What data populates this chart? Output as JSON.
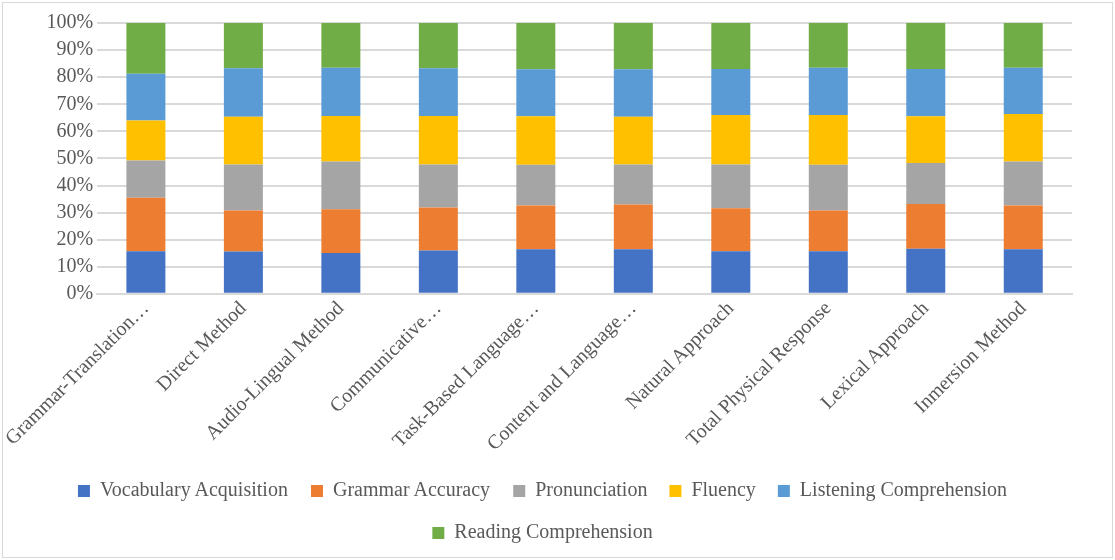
{
  "chart_data": {
    "type": "bar",
    "stacked": true,
    "categories": [
      "Grammar-Translation…",
      "Direct Method",
      "Audio-Lingual Method",
      "Communicative…",
      "Task-Based Language…",
      "Content and Language…",
      "Natural Approach",
      "Total Physical Response",
      "Lexical Approach",
      "Inmersion Method"
    ],
    "series": [
      {
        "name": "Vocabulary Acquisition",
        "color": "#4472c4",
        "values": [
          15.7,
          15.6,
          15.1,
          16.0,
          16.5,
          16.5,
          15.7,
          15.7,
          16.7,
          16.5
        ]
      },
      {
        "name": "Grammar Accuracy",
        "color": "#ed7d31",
        "values": [
          19.8,
          15.2,
          16.1,
          15.9,
          16.1,
          16.5,
          15.9,
          15.1,
          16.5,
          16.1
        ]
      },
      {
        "name": "Pronunciation",
        "color": "#a5a5a5",
        "values": [
          13.7,
          17.0,
          17.7,
          15.9,
          15.1,
          14.8,
          16.2,
          16.9,
          15.1,
          16.3
        ]
      },
      {
        "name": "Fluency",
        "color": "#ffc000",
        "values": [
          14.8,
          17.6,
          16.8,
          17.9,
          17.9,
          17.6,
          18.2,
          18.3,
          17.3,
          17.5
        ]
      },
      {
        "name": "Listening Comprehension",
        "color": "#5b9bd5",
        "values": [
          17.3,
          17.9,
          17.8,
          17.6,
          17.3,
          17.5,
          17.0,
          17.5,
          17.4,
          17.1
        ]
      },
      {
        "name": "Reading Comprehension",
        "color": "#70ad47",
        "values": [
          18.7,
          16.7,
          16.5,
          16.7,
          17.1,
          17.1,
          17.0,
          16.5,
          17.0,
          16.5
        ]
      }
    ],
    "ylim": [
      0,
      100
    ],
    "yticks": [
      {
        "value": 0,
        "label": "0%"
      },
      {
        "value": 10,
        "label": "10%"
      },
      {
        "value": 20,
        "label": "20%"
      },
      {
        "value": 30,
        "label": "30%"
      },
      {
        "value": 40,
        "label": "40%"
      },
      {
        "value": 50,
        "label": "50%"
      },
      {
        "value": 60,
        "label": "60%"
      },
      {
        "value": 70,
        "label": "70%"
      },
      {
        "value": 80,
        "label": "80%"
      },
      {
        "value": 90,
        "label": "90%"
      },
      {
        "value": 100,
        "label": "100%"
      }
    ],
    "grid": "y",
    "legend": "bottom"
  }
}
